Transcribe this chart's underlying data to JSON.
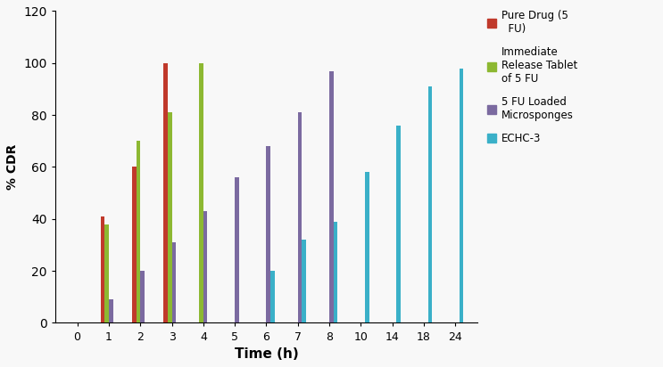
{
  "time_points": [
    0,
    1,
    2,
    3,
    4,
    5,
    6,
    7,
    8,
    10,
    14,
    18,
    24
  ],
  "pure_drug": {
    "times": [
      1,
      2,
      3
    ],
    "values": [
      41,
      60,
      100
    ],
    "color": "#c0392b",
    "label": "Pure Drug (5\n  FU)"
  },
  "immediate_release": {
    "times": [
      1,
      2,
      3,
      4
    ],
    "values": [
      38,
      70,
      81,
      100
    ],
    "color": "#8db832",
    "label": "Immediate\nRelease Tablet\nof 5 FU"
  },
  "microsponges": {
    "times": [
      1,
      2,
      3,
      4,
      5,
      6,
      7,
      8
    ],
    "values": [
      9,
      20,
      31,
      43,
      56,
      68,
      81,
      97
    ],
    "color": "#7b6aa0",
    "label": "5 FU Loaded\nMicrosponges"
  },
  "echc3": {
    "times": [
      6,
      7,
      8,
      10,
      14,
      18,
      24
    ],
    "values": [
      20,
      32,
      39,
      58,
      76,
      91,
      98
    ],
    "color": "#3ab0c8",
    "label": "ECHC-3"
  },
  "xlabel": "Time (h)",
  "ylabel": "% CDR",
  "ylim": [
    0,
    120
  ],
  "yticks": [
    0,
    20,
    40,
    60,
    80,
    100,
    120
  ],
  "bar_width": 0.13,
  "background_color": "#f8f8f8"
}
